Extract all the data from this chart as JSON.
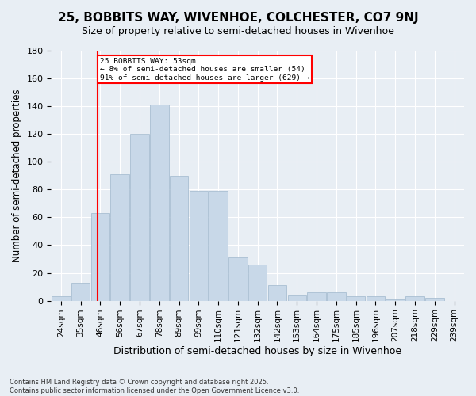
{
  "title": "25, BOBBITS WAY, WIVENHOE, COLCHESTER, CO7 9NJ",
  "subtitle": "Size of property relative to semi-detached houses in Wivenhoe",
  "xlabel": "Distribution of semi-detached houses by size in Wivenhoe",
  "ylabel": "Number of semi-detached properties",
  "categories": [
    "24sqm",
    "35sqm",
    "46sqm",
    "56sqm",
    "67sqm",
    "78sqm",
    "89sqm",
    "99sqm",
    "110sqm",
    "121sqm",
    "132sqm",
    "142sqm",
    "153sqm",
    "164sqm",
    "175sqm",
    "185sqm",
    "196sqm",
    "207sqm",
    "218sqm",
    "229sqm",
    "239sqm"
  ],
  "values": [
    3,
    13,
    63,
    91,
    120,
    141,
    90,
    79,
    79,
    31,
    26,
    11,
    4,
    6,
    6,
    3,
    3,
    1,
    3,
    2,
    0
  ],
  "bar_color": "#c8d8e8",
  "bar_edge_color": "#a0b8cc",
  "property_label": "25 BOBBITS WAY: 53sqm",
  "pct_smaller": 8,
  "pct_larger": 91,
  "n_smaller": 54,
  "n_larger": 629,
  "red_line_x": 1.85,
  "ylim": [
    0,
    180
  ],
  "yticks": [
    0,
    20,
    40,
    60,
    80,
    100,
    120,
    140,
    160,
    180
  ],
  "background_color": "#e8eef4",
  "footnote": "Contains HM Land Registry data © Crown copyright and database right 2025.\nContains public sector information licensed under the Open Government Licence v3.0."
}
